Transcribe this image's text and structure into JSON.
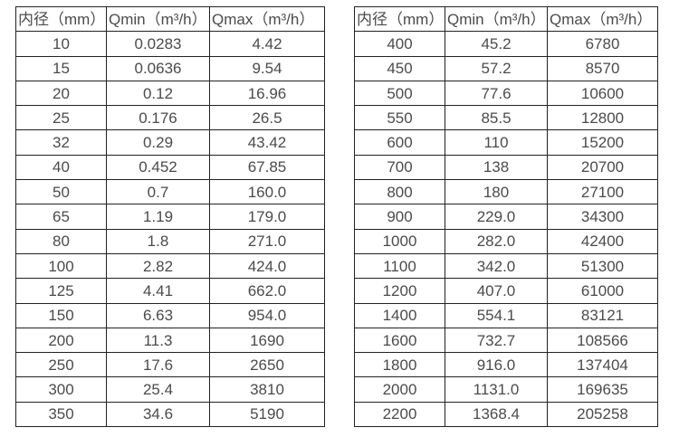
{
  "colors": {
    "background": "#ffffff",
    "border": "#222222",
    "text": "#4b4b4b"
  },
  "tables": [
    {
      "name": "flow-spec-table-small-diameters",
      "headers": [
        "内径（mm）",
        "Qmin（m³/h）",
        "Qmax（m³/h）"
      ],
      "rows": [
        [
          "10",
          "0.0283",
          "4.42"
        ],
        [
          "15",
          "0.0636",
          "9.54"
        ],
        [
          "20",
          "0.12",
          "16.96"
        ],
        [
          "25",
          "0.176",
          "26.5"
        ],
        [
          "32",
          "0.29",
          "43.42"
        ],
        [
          "40",
          "0.452",
          "67.85"
        ],
        [
          "50",
          "0.7",
          "160.0"
        ],
        [
          "65",
          "1.19",
          "179.0"
        ],
        [
          "80",
          "1.8",
          "271.0"
        ],
        [
          "100",
          "2.82",
          "424.0"
        ],
        [
          "125",
          "4.41",
          "662.0"
        ],
        [
          "150",
          "6.63",
          "954.0"
        ],
        [
          "200",
          "11.3",
          "1690"
        ],
        [
          "250",
          "17.6",
          "2650"
        ],
        [
          "300",
          "25.4",
          "3810"
        ],
        [
          "350",
          "34.6",
          "5190"
        ]
      ]
    },
    {
      "name": "flow-spec-table-large-diameters",
      "headers": [
        "内径（mm）",
        "Qmin（m³/h）",
        "Qmax（m³/h）"
      ],
      "rows": [
        [
          "400",
          "45.2",
          "6780"
        ],
        [
          "450",
          "57.2",
          "8570"
        ],
        [
          "500",
          "77.6",
          "10600"
        ],
        [
          "550",
          "85.5",
          "12800"
        ],
        [
          "600",
          "110",
          "15200"
        ],
        [
          "700",
          "138",
          "20700"
        ],
        [
          "800",
          "180",
          "27100"
        ],
        [
          "900",
          "229.0",
          "34300"
        ],
        [
          "1000",
          "282.0",
          "42400"
        ],
        [
          "1100",
          "342.0",
          "51300"
        ],
        [
          "1200",
          "407.0",
          "61000"
        ],
        [
          "1400",
          "554.1",
          "83121"
        ],
        [
          "1600",
          "732.7",
          "108566"
        ],
        [
          "1800",
          "916.0",
          "137404"
        ],
        [
          "2000",
          "1131.0",
          "169635"
        ],
        [
          "2200",
          "1368.4",
          "205258"
        ]
      ]
    }
  ]
}
